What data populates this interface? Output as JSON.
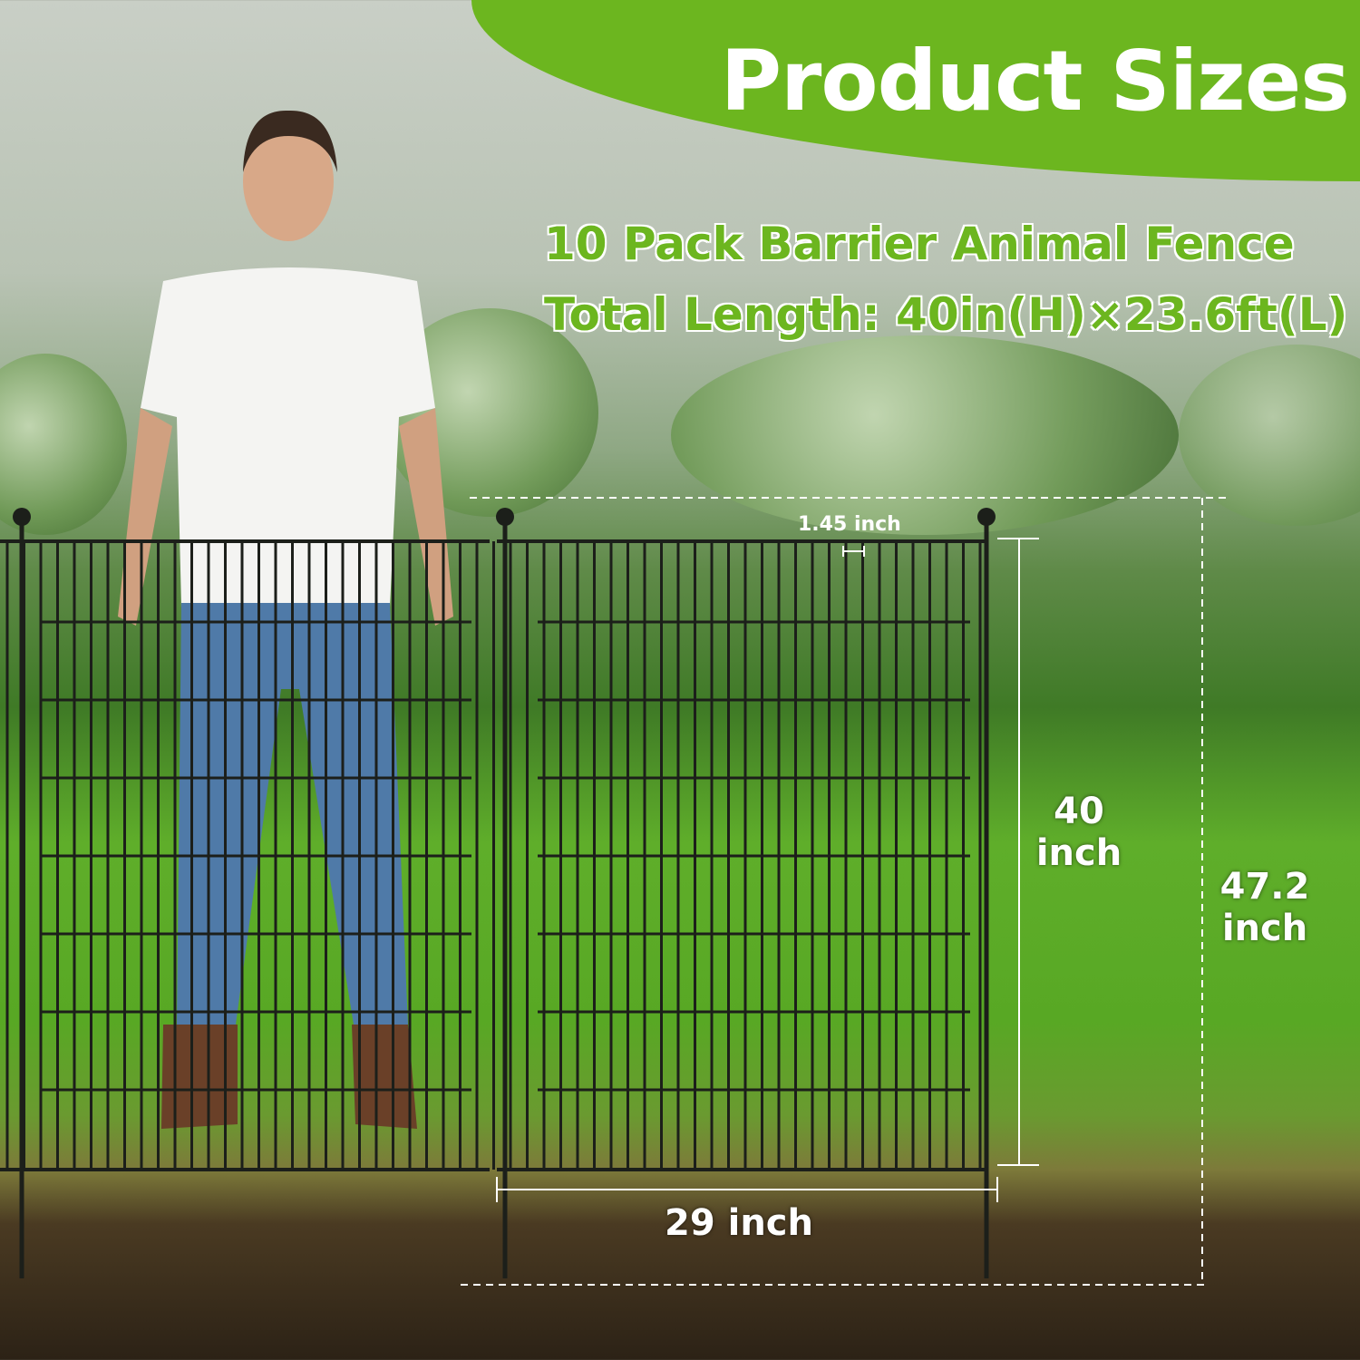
{
  "header": {
    "title": "Product Sizes"
  },
  "product": {
    "line1": "10 Pack Barrier Animal Fence",
    "line2": "Total Length: 40in(H)×23.6ft(L)"
  },
  "dimensions": {
    "bar_spacing": "1.45 inch",
    "panel_height_value": "40",
    "panel_height_unit": "inch",
    "total_height_value": "47.2",
    "total_height_unit": "inch",
    "panel_width": "29 inch"
  },
  "colors": {
    "accent": "#6cb61f",
    "fence": "#1c1f1a",
    "text": "#ffffff"
  }
}
